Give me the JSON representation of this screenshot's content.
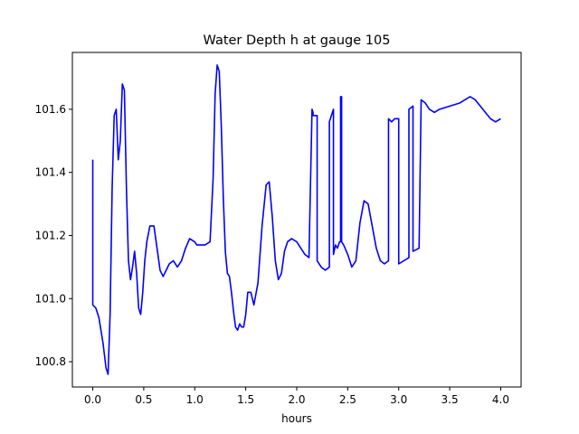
{
  "chart_data": {
    "type": "line",
    "title": "Water Depth h at gauge 105",
    "xlabel": "hours",
    "ylabel": "",
    "xlim": [
      -0.2,
      4.2
    ],
    "ylim": [
      100.72,
      101.78
    ],
    "xticks": [
      0.0,
      0.5,
      1.0,
      1.5,
      2.0,
      2.5,
      3.0,
      3.5,
      4.0
    ],
    "xtick_labels": [
      "0.0",
      "0.5",
      "1.0",
      "1.5",
      "2.0",
      "2.5",
      "3.0",
      "3.5",
      "4.0"
    ],
    "yticks": [
      100.8,
      101.0,
      101.2,
      101.4,
      101.6
    ],
    "ytick_labels": [
      "100.8",
      "101.0",
      "101.2",
      "101.4",
      "101.6"
    ],
    "grid": false,
    "series": [
      {
        "color": "#0000ff",
        "x": [
          0.0,
          0.0,
          0.03,
          0.06,
          0.1,
          0.13,
          0.15,
          0.17,
          0.19,
          0.21,
          0.23,
          0.25,
          0.27,
          0.29,
          0.31,
          0.33,
          0.35,
          0.37,
          0.39,
          0.41,
          0.43,
          0.45,
          0.47,
          0.49,
          0.51,
          0.53,
          0.56,
          0.6,
          0.63,
          0.66,
          0.69,
          0.72,
          0.75,
          0.79,
          0.83,
          0.87,
          0.91,
          0.95,
          1.0,
          1.02,
          1.05,
          1.1,
          1.15,
          1.18,
          1.2,
          1.22,
          1.24,
          1.26,
          1.28,
          1.3,
          1.32,
          1.34,
          1.36,
          1.38,
          1.4,
          1.42,
          1.44,
          1.46,
          1.48,
          1.5,
          1.52,
          1.55,
          1.58,
          1.62,
          1.66,
          1.7,
          1.73,
          1.76,
          1.79,
          1.82,
          1.85,
          1.88,
          1.91,
          1.95,
          2.0,
          2.04,
          2.08,
          2.12,
          2.15,
          2.16,
          2.16,
          2.2,
          2.2,
          2.24,
          2.28,
          2.32,
          2.32,
          2.36,
          2.36,
          2.38,
          2.4,
          2.42,
          2.43,
          2.43,
          2.44,
          2.44,
          2.46,
          2.5,
          2.54,
          2.58,
          2.62,
          2.66,
          2.7,
          2.74,
          2.78,
          2.82,
          2.86,
          2.9,
          2.9,
          2.93,
          2.96,
          3.0,
          3.0,
          3.05,
          3.1,
          3.1,
          3.14,
          3.14,
          3.2,
          3.2,
          3.22,
          3.26,
          3.3,
          3.35,
          3.4,
          3.5,
          3.6,
          3.65,
          3.7,
          3.75,
          3.8,
          3.85,
          3.9,
          3.95,
          4.0
        ],
        "y": [
          101.44,
          100.98,
          100.97,
          100.94,
          100.86,
          100.78,
          100.76,
          100.95,
          101.35,
          101.58,
          101.6,
          101.44,
          101.5,
          101.68,
          101.66,
          101.35,
          101.12,
          101.06,
          101.1,
          101.15,
          101.08,
          100.97,
          100.95,
          101.02,
          101.12,
          101.18,
          101.23,
          101.23,
          101.16,
          101.09,
          101.07,
          101.09,
          101.11,
          101.12,
          101.1,
          101.12,
          101.16,
          101.19,
          101.18,
          101.17,
          101.17,
          101.17,
          101.18,
          101.38,
          101.65,
          101.74,
          101.72,
          101.55,
          101.32,
          101.15,
          101.08,
          101.07,
          101.02,
          100.96,
          100.91,
          100.9,
          100.92,
          100.91,
          100.91,
          100.95,
          101.02,
          101.02,
          100.98,
          101.05,
          101.23,
          101.36,
          101.37,
          101.26,
          101.12,
          101.06,
          101.08,
          101.15,
          101.18,
          101.19,
          101.18,
          101.16,
          101.14,
          101.13,
          101.6,
          101.59,
          101.58,
          101.58,
          101.12,
          101.1,
          101.09,
          101.1,
          101.56,
          101.6,
          101.14,
          101.17,
          101.16,
          101.18,
          101.18,
          101.64,
          101.64,
          101.18,
          101.17,
          101.14,
          101.1,
          101.12,
          101.24,
          101.31,
          101.3,
          101.23,
          101.16,
          101.12,
          101.11,
          101.12,
          101.57,
          101.56,
          101.57,
          101.57,
          101.11,
          101.12,
          101.13,
          101.6,
          101.61,
          101.15,
          101.16,
          101.17,
          101.63,
          101.62,
          101.6,
          101.59,
          101.6,
          101.61,
          101.62,
          101.63,
          101.64,
          101.63,
          101.61,
          101.59,
          101.57,
          101.56,
          101.57
        ]
      }
    ]
  }
}
